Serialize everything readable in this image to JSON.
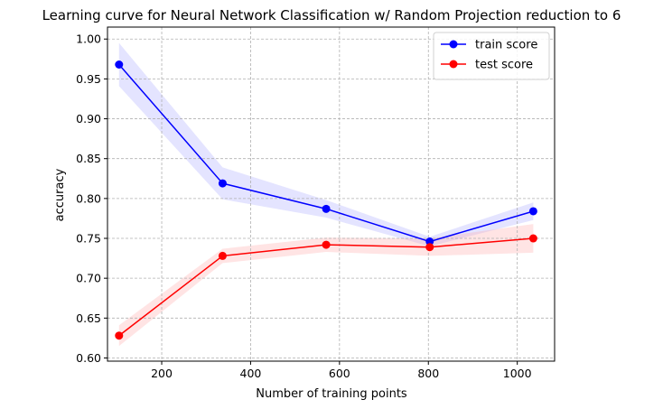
{
  "chart_data": {
    "type": "line",
    "title": "Learning curve for Neural Network Classification w/ Random Projection reduction to 6",
    "xlabel": "Number of training points",
    "ylabel": "accuracy",
    "xlim": [
      78,
      1084
    ],
    "ylim": [
      0.596,
      1.015
    ],
    "xticks": [
      200,
      400,
      600,
      800,
      1000
    ],
    "yticks": [
      0.6,
      0.65,
      0.7,
      0.75,
      0.8,
      0.85,
      0.9,
      0.95,
      1.0
    ],
    "grid": true,
    "legend_position": "top-right",
    "x": [
      104,
      337,
      570,
      803,
      1036
    ],
    "series": [
      {
        "name": "train score",
        "color": "#0000ff",
        "band_color": "#b3b3ff",
        "values": [
          0.968,
          0.819,
          0.787,
          0.746,
          0.784
        ],
        "upper": [
          0.995,
          0.839,
          0.798,
          0.752,
          0.795
        ],
        "lower": [
          0.941,
          0.799,
          0.776,
          0.74,
          0.773
        ]
      },
      {
        "name": "test score",
        "color": "#ff0000",
        "band_color": "#ffb3b3",
        "values": [
          0.628,
          0.728,
          0.742,
          0.739,
          0.75
        ],
        "upper": [
          0.641,
          0.737,
          0.751,
          0.75,
          0.768
        ],
        "lower": [
          0.615,
          0.719,
          0.733,
          0.728,
          0.732
        ]
      }
    ]
  }
}
